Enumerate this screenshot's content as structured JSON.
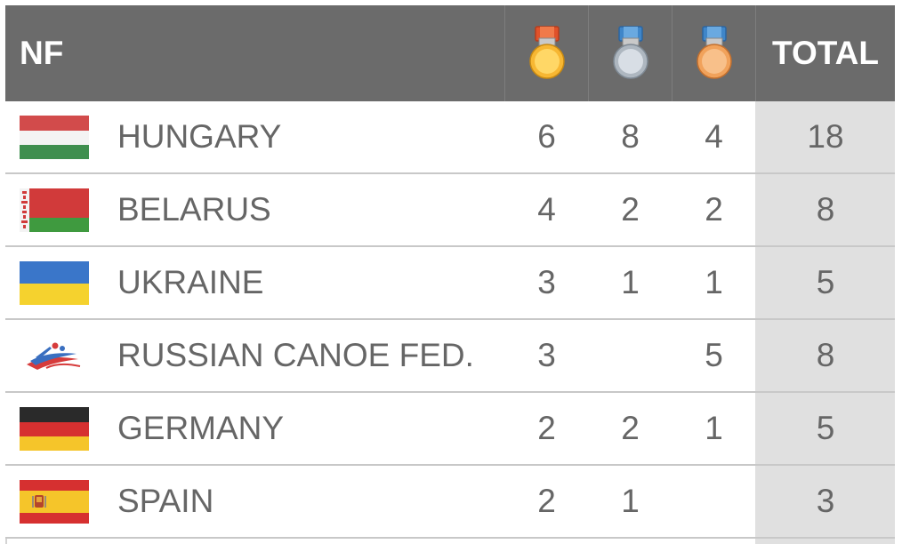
{
  "header": {
    "nf_label": "NF",
    "total_label": "TOTAL",
    "gold_icon": "gold-medal-icon",
    "silver_icon": "silver-medal-icon",
    "bronze_icon": "bronze-medal-icon"
  },
  "colors": {
    "header_bg": "#6b6b6b",
    "total_bg": "#e0e0e0",
    "text": "#666666"
  },
  "rows": [
    {
      "name": "HUNGARY",
      "gold": "6",
      "silver": "8",
      "bronze": "4",
      "total": "18",
      "flag": "hungary-flag-icon"
    },
    {
      "name": "BELARUS",
      "gold": "4",
      "silver": "2",
      "bronze": "2",
      "total": "8",
      "flag": "belarus-flag-icon"
    },
    {
      "name": "UKRAINE",
      "gold": "3",
      "silver": "1",
      "bronze": "1",
      "total": "5",
      "flag": "ukraine-flag-icon"
    },
    {
      "name": "RUSSIAN CANOE FED.",
      "gold": "3",
      "silver": "",
      "bronze": "5",
      "total": "8",
      "flag": "russian-canoe-federation-logo-icon"
    },
    {
      "name": "GERMANY",
      "gold": "2",
      "silver": "2",
      "bronze": "1",
      "total": "5",
      "flag": "germany-flag-icon"
    },
    {
      "name": "SPAIN",
      "gold": "2",
      "silver": "1",
      "bronze": "",
      "total": "3",
      "flag": "spain-flag-icon"
    }
  ]
}
